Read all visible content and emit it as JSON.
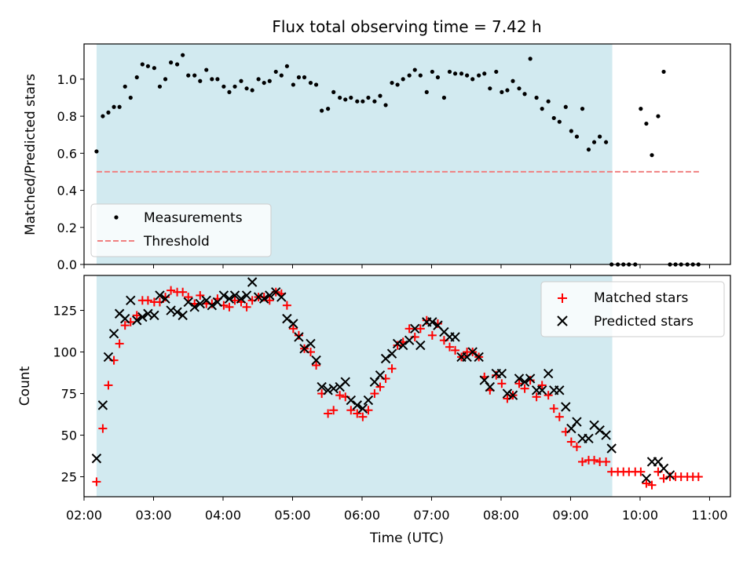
{
  "chart_data": [
    {
      "type": "scatter",
      "title": "Flux total observing time = 7.42 h",
      "xlabel": "",
      "ylabel": "Matched/Predicted stars",
      "xlim": [
        2.0,
        11.3
      ],
      "ylim": [
        0.0,
        1.19
      ],
      "yticks": [
        "0.0",
        "0.2",
        "0.4",
        "0.6",
        "0.8",
        "1.0"
      ],
      "ytick_values": [
        0.0,
        0.2,
        0.4,
        0.6,
        0.8,
        1.0
      ],
      "shaded_x": [
        2.18,
        9.6
      ],
      "shade_color": "#d2eaf0",
      "legend_position": "lower-left",
      "legend": {
        "measurements": "Measurements",
        "threshold": "Threshold"
      },
      "threshold": {
        "name": "Threshold",
        "value": 0.5,
        "x": [
          2.18,
          10.85
        ],
        "color": "#f08080",
        "style": "dashed"
      },
      "series": [
        {
          "name": "Measurements",
          "color": "#000000",
          "marker": "dot",
          "x": [
            2.18,
            2.27,
            2.35,
            2.43,
            2.51,
            2.59,
            2.67,
            2.76,
            2.84,
            2.92,
            3.01,
            3.09,
            3.17,
            3.25,
            3.34,
            3.42,
            3.5,
            3.59,
            3.67,
            3.76,
            3.84,
            3.92,
            4.01,
            4.09,
            4.17,
            4.26,
            4.34,
            4.42,
            4.51,
            4.59,
            4.67,
            4.76,
            4.84,
            4.92,
            5.01,
            5.09,
            5.17,
            5.26,
            5.34,
            5.42,
            5.51,
            5.59,
            5.68,
            5.76,
            5.84,
            5.93,
            6.01,
            6.09,
            6.18,
            6.26,
            6.34,
            6.43,
            6.51,
            6.59,
            6.68,
            6.76,
            6.84,
            6.93,
            7.01,
            7.09,
            7.18,
            7.26,
            7.34,
            7.43,
            7.51,
            7.59,
            7.68,
            7.76,
            7.84,
            7.93,
            8.01,
            8.09,
            8.17,
            8.26,
            8.34,
            8.42,
            8.51,
            8.59,
            8.68,
            8.76,
            8.84,
            8.93,
            9.01,
            9.09,
            9.17,
            9.26,
            9.34,
            9.42,
            9.51,
            9.59,
            9.68,
            9.76,
            9.84,
            9.93,
            10.01,
            10.09,
            10.17,
            10.26,
            10.34,
            10.43,
            10.51,
            10.59,
            10.68,
            10.76,
            10.84
          ],
          "y": [
            0.61,
            0.8,
            0.82,
            0.85,
            0.85,
            0.96,
            0.9,
            1.01,
            1.08,
            1.07,
            1.06,
            0.96,
            1.0,
            1.09,
            1.08,
            1.13,
            1.02,
            1.02,
            0.99,
            1.05,
            1.0,
            1.0,
            0.96,
            0.93,
            0.96,
            0.99,
            0.95,
            0.94,
            1.0,
            0.98,
            0.99,
            1.04,
            1.02,
            1.07,
            0.97,
            1.01,
            1.01,
            0.98,
            0.97,
            0.83,
            0.84,
            0.93,
            0.9,
            0.89,
            0.9,
            0.88,
            0.88,
            0.9,
            0.88,
            0.91,
            0.86,
            0.98,
            0.97,
            1.0,
            1.02,
            1.05,
            1.02,
            0.93,
            1.04,
            1.01,
            0.9,
            1.04,
            1.03,
            1.03,
            1.02,
            1.0,
            1.02,
            1.03,
            0.95,
            1.04,
            0.93,
            0.94,
            0.99,
            0.95,
            0.92,
            1.11,
            0.9,
            0.84,
            0.88,
            0.79,
            0.77,
            0.85,
            0.72,
            0.69,
            0.84,
            0.62,
            0.66,
            0.69,
            0.66,
            0.0,
            0.0,
            0.0,
            0.0,
            0.0,
            0.84,
            0.76,
            0.59,
            0.8,
            1.04,
            0.0,
            0.0,
            0.0,
            0.0,
            0.0,
            0.0
          ]
        }
      ]
    },
    {
      "type": "scatter",
      "title": "",
      "xlabel": "Time (UTC)",
      "ylabel": "Count",
      "xlim": [
        2.0,
        11.3
      ],
      "ylim": [
        13,
        146
      ],
      "yticks": [
        "25",
        "50",
        "75",
        "100",
        "125"
      ],
      "ytick_values": [
        25,
        50,
        75,
        100,
        125
      ],
      "xticks": [
        "02:00",
        "03:00",
        "04:00",
        "05:00",
        "06:00",
        "07:00",
        "08:00",
        "09:00",
        "10:00",
        "11:00"
      ],
      "xtick_values": [
        2,
        3,
        4,
        5,
        6,
        7,
        8,
        9,
        10,
        11
      ],
      "shaded_x": [
        2.18,
        9.6
      ],
      "shade_color": "#d2eaf0",
      "legend_position": "upper-right",
      "legend": {
        "matched": "Matched stars",
        "predicted": "Predicted stars"
      },
      "series": [
        {
          "name": "Matched stars",
          "color": "#ff0000",
          "marker": "plus",
          "x": [
            2.18,
            2.27,
            2.35,
            2.43,
            2.51,
            2.59,
            2.67,
            2.76,
            2.84,
            2.92,
            3.01,
            3.09,
            3.17,
            3.25,
            3.34,
            3.42,
            3.5,
            3.59,
            3.67,
            3.76,
            3.84,
            3.92,
            4.01,
            4.09,
            4.17,
            4.26,
            4.34,
            4.42,
            4.51,
            4.59,
            4.67,
            4.76,
            4.84,
            4.92,
            5.01,
            5.09,
            5.17,
            5.26,
            5.34,
            5.42,
            5.51,
            5.59,
            5.68,
            5.76,
            5.84,
            5.93,
            6.01,
            6.09,
            6.18,
            6.26,
            6.34,
            6.43,
            6.51,
            6.59,
            6.68,
            6.76,
            6.84,
            6.93,
            7.01,
            7.09,
            7.18,
            7.26,
            7.34,
            7.43,
            7.51,
            7.59,
            7.68,
            7.76,
            7.84,
            7.93,
            8.01,
            8.09,
            8.17,
            8.26,
            8.34,
            8.42,
            8.51,
            8.59,
            8.68,
            8.76,
            8.84,
            8.93,
            9.01,
            9.09,
            9.17,
            9.26,
            9.34,
            9.42,
            9.51,
            9.59,
            9.68,
            9.76,
            9.84,
            9.93,
            10.01,
            10.09,
            10.17,
            10.26,
            10.34,
            10.43,
            10.51,
            10.59,
            10.68,
            10.76,
            10.84
          ],
          "y": [
            22,
            54,
            80,
            95,
            105,
            116,
            118,
            122,
            131,
            131,
            130,
            130,
            133,
            137,
            136,
            136,
            133,
            129,
            134,
            129,
            129,
            132,
            128,
            127,
            131,
            130,
            127,
            131,
            133,
            133,
            131,
            136,
            135,
            128,
            114,
            110,
            102,
            100,
            92,
            75,
            63,
            65,
            74,
            73,
            65,
            63,
            61,
            65,
            75,
            79,
            84,
            90,
            104,
            106,
            114,
            109,
            114,
            119,
            110,
            117,
            107,
            103,
            101,
            97,
            100,
            100,
            97,
            85,
            77,
            86,
            81,
            72,
            74,
            81,
            78,
            83,
            73,
            80,
            74,
            66,
            61,
            52,
            46,
            43,
            34,
            35,
            35,
            34,
            34,
            28,
            28,
            28,
            28,
            28,
            28,
            21,
            20,
            28,
            24,
            25,
            25,
            25,
            25,
            25,
            25
          ]
        },
        {
          "name": "Predicted stars",
          "color": "#000000",
          "marker": "x",
          "x": [
            2.18,
            2.27,
            2.35,
            2.43,
            2.51,
            2.59,
            2.67,
            2.76,
            2.84,
            2.92,
            3.01,
            3.09,
            3.17,
            3.25,
            3.34,
            3.42,
            3.5,
            3.59,
            3.67,
            3.76,
            3.84,
            3.92,
            4.01,
            4.09,
            4.17,
            4.26,
            4.34,
            4.42,
            4.51,
            4.59,
            4.67,
            4.76,
            4.84,
            4.92,
            5.01,
            5.09,
            5.17,
            5.26,
            5.34,
            5.42,
            5.51,
            5.59,
            5.68,
            5.76,
            5.84,
            5.93,
            6.01,
            6.09,
            6.18,
            6.26,
            6.34,
            6.43,
            6.51,
            6.59,
            6.68,
            6.76,
            6.84,
            6.93,
            7.01,
            7.09,
            7.18,
            7.26,
            7.34,
            7.43,
            7.51,
            7.59,
            7.68,
            7.76,
            7.84,
            7.93,
            8.01,
            8.09,
            8.17,
            8.26,
            8.34,
            8.42,
            8.51,
            8.59,
            8.68,
            8.76,
            8.84,
            8.93,
            9.01,
            9.09,
            9.17,
            9.26,
            9.34,
            9.42,
            9.51,
            9.59,
            10.09,
            10.17,
            10.26,
            10.34,
            10.43
          ],
          "y": [
            36,
            68,
            97,
            111,
            123,
            120,
            131,
            119,
            121,
            123,
            122,
            134,
            132,
            125,
            124,
            122,
            130,
            127,
            129,
            131,
            128,
            130,
            134,
            132,
            134,
            132,
            134,
            142,
            133,
            132,
            134,
            136,
            133,
            120,
            117,
            109,
            102,
            105,
            95,
            79,
            77,
            78,
            79,
            82,
            71,
            68,
            66,
            71,
            82,
            86,
            96,
            99,
            105,
            104,
            107,
            114,
            104,
            118,
            118,
            116,
            112,
            109,
            109,
            97,
            97,
            100,
            97,
            83,
            79,
            87,
            87,
            75,
            74,
            84,
            82,
            84,
            77,
            77,
            87,
            77,
            77,
            67,
            54,
            58,
            48,
            48,
            56,
            53,
            50,
            42,
            24,
            34,
            34,
            30,
            26
          ]
        }
      ]
    }
  ]
}
